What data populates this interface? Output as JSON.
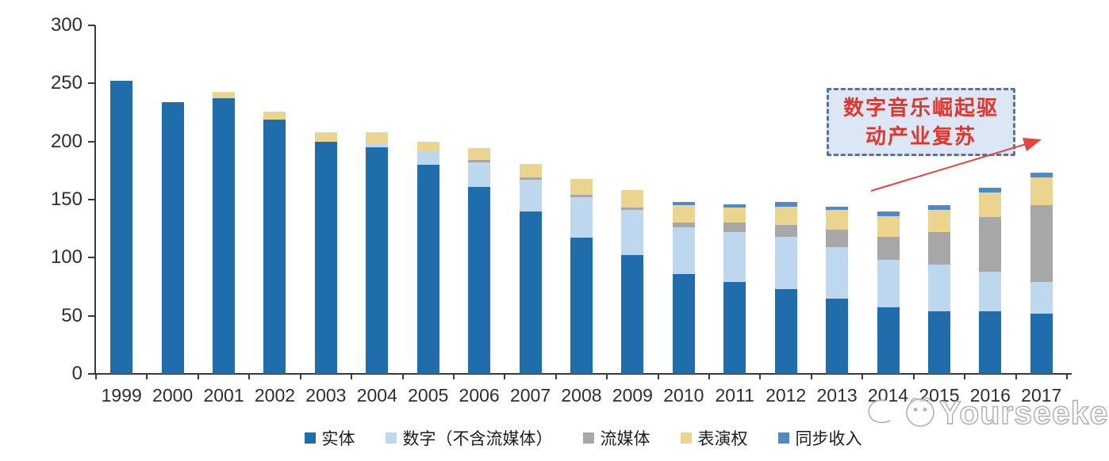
{
  "chart_data": {
    "type": "bar",
    "stacked": true,
    "title": "",
    "xlabel": "",
    "ylabel": "",
    "categories": [
      "1999",
      "2000",
      "2001",
      "2002",
      "2003",
      "2004",
      "2005",
      "2006",
      "2007",
      "2008",
      "2009",
      "2010",
      "2011",
      "2012",
      "2013",
      "2014",
      "2015",
      "2016",
      "2017"
    ],
    "series": [
      {
        "name": "实体",
        "color": "#1f6dab",
        "values": [
          252,
          234,
          237,
          219,
          200,
          195,
          180,
          161,
          140,
          117,
          102,
          86,
          79,
          73,
          65,
          57,
          54,
          54,
          52
        ]
      },
      {
        "name": "数字（不含流媒体）",
        "color": "#bdd7ee",
        "values": [
          0,
          0,
          0,
          0,
          0,
          3,
          11,
          21,
          27,
          35,
          39,
          40,
          43,
          45,
          44,
          41,
          40,
          34,
          27
        ]
      },
      {
        "name": "流媒体",
        "color": "#a7a7a7",
        "values": [
          0,
          0,
          0,
          0,
          0,
          0,
          0,
          2,
          2,
          2,
          2,
          4,
          8,
          10,
          15,
          20,
          28,
          47,
          66
        ]
      },
      {
        "name": "表演权",
        "color": "#ebd48d",
        "values": [
          0,
          0,
          6,
          7,
          8,
          10,
          9,
          10,
          12,
          14,
          15,
          15,
          13,
          16,
          17,
          18,
          19,
          21,
          24
        ]
      },
      {
        "name": "同步收入",
        "color": "#4e8ac8",
        "values": [
          0,
          0,
          0,
          0,
          0,
          0,
          0,
          0,
          0,
          0,
          0,
          3,
          3,
          4,
          3,
          4,
          4,
          4,
          4
        ]
      }
    ],
    "ylim": [
      0,
      300
    ],
    "yticks": [
      "0",
      "50",
      "100",
      "150",
      "200",
      "250",
      "300"
    ],
    "ytick_step": 50,
    "grid": false,
    "legend_position": "bottom"
  },
  "annotation": {
    "lines": [
      "数字音乐崛起驱",
      "动产业复苏"
    ],
    "text_color": "#e5352b",
    "box_fill": "#dbe7f5",
    "box_border": "#5c7290",
    "arrow_color": "#e8443b"
  },
  "watermark": {
    "text": "Yourseeker",
    "color": "#aeaeae"
  }
}
